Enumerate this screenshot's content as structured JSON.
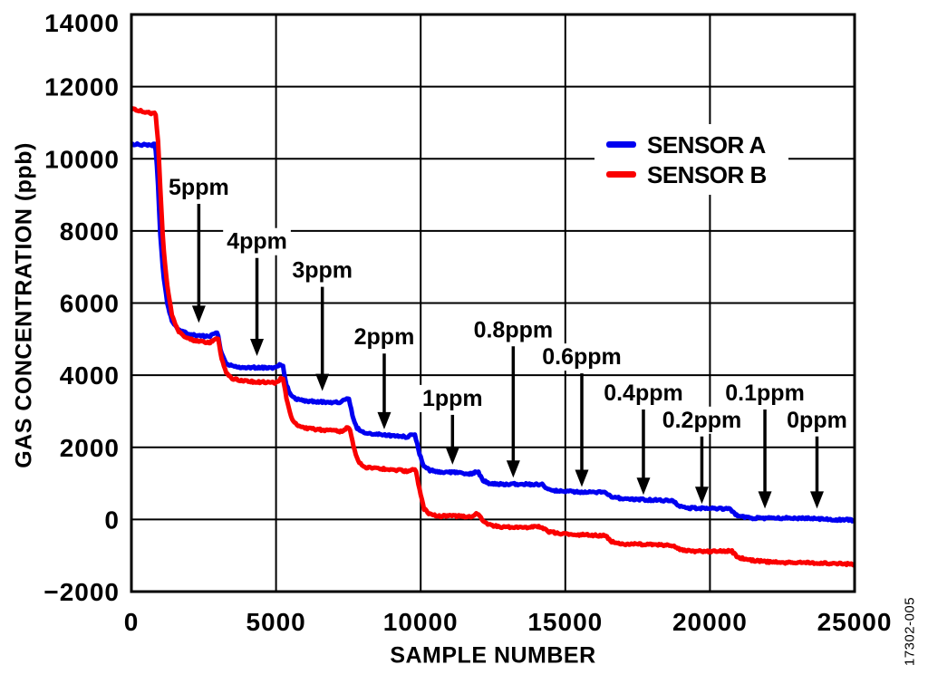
{
  "figure": {
    "watermark": "17302-005",
    "background_color": "#ffffff",
    "axis_color": "#000000"
  },
  "chart_data": {
    "type": "line",
    "title": "",
    "xlabel": "SAMPLE NUMBER",
    "ylabel": "GAS CONCENTRATION (ppb)",
    "xlim": [
      0,
      25000
    ],
    "ylim": [
      -2000,
      14000
    ],
    "x_ticks": [
      0,
      5000,
      10000,
      15000,
      20000,
      25000
    ],
    "y_ticks": [
      -2000,
      0,
      2000,
      4000,
      6000,
      8000,
      10000,
      12000,
      14000
    ],
    "grid": true,
    "legend_position": "upper-right-inside",
    "noise_ppb": 28,
    "series": [
      {
        "name": "SENSOR A",
        "color": "#0000f0",
        "breakpoints": [
          [
            0,
            10420
          ],
          [
            400,
            10400
          ],
          [
            700,
            10380
          ],
          [
            820,
            10420
          ],
          [
            900,
            9600
          ],
          [
            1000,
            7900
          ],
          [
            1100,
            6800
          ],
          [
            1250,
            5950
          ],
          [
            1400,
            5500
          ],
          [
            1600,
            5260
          ],
          [
            1900,
            5150
          ],
          [
            2300,
            5090
          ],
          [
            2700,
            5070
          ],
          [
            2870,
            5190
          ],
          [
            2980,
            5170
          ],
          [
            3100,
            4650
          ],
          [
            3250,
            4360
          ],
          [
            3450,
            4270
          ],
          [
            3800,
            4230
          ],
          [
            4500,
            4200
          ],
          [
            4950,
            4180
          ],
          [
            5120,
            4290
          ],
          [
            5230,
            4270
          ],
          [
            5350,
            3750
          ],
          [
            5500,
            3450
          ],
          [
            5700,
            3330
          ],
          [
            6100,
            3290
          ],
          [
            6900,
            3260
          ],
          [
            7250,
            3240
          ],
          [
            7420,
            3350
          ],
          [
            7520,
            3330
          ],
          [
            7650,
            2850
          ],
          [
            7800,
            2520
          ],
          [
            8000,
            2400
          ],
          [
            8400,
            2360
          ],
          [
            9200,
            2320
          ],
          [
            9550,
            2300
          ],
          [
            9700,
            2390
          ],
          [
            9800,
            2370
          ],
          [
            9950,
            1850
          ],
          [
            10100,
            1500
          ],
          [
            10300,
            1360
          ],
          [
            10700,
            1310
          ],
          [
            11400,
            1280
          ],
          [
            11750,
            1260
          ],
          [
            11900,
            1330
          ],
          [
            12000,
            1310
          ],
          [
            12150,
            1100
          ],
          [
            12350,
            1020
          ],
          [
            12700,
            990
          ],
          [
            13600,
            970
          ],
          [
            14100,
            950
          ],
          [
            14200,
            960
          ],
          [
            14400,
            840
          ],
          [
            14700,
            790
          ],
          [
            15300,
            780
          ],
          [
            16100,
            760
          ],
          [
            16400,
            750
          ],
          [
            16600,
            630
          ],
          [
            16900,
            570
          ],
          [
            17500,
            550
          ],
          [
            18400,
            540
          ],
          [
            18700,
            530
          ],
          [
            18900,
            400
          ],
          [
            19200,
            320
          ],
          [
            19700,
            300
          ],
          [
            20400,
            290
          ],
          [
            20700,
            280
          ],
          [
            20900,
            130
          ],
          [
            21300,
            60
          ],
          [
            21900,
            40
          ],
          [
            22800,
            30
          ],
          [
            23300,
            20
          ],
          [
            24200,
            10
          ],
          [
            24800,
            0
          ],
          [
            25000,
            -20
          ]
        ]
      },
      {
        "name": "SENSOR B",
        "color": "#fa0000",
        "breakpoints": [
          [
            0,
            11400
          ],
          [
            350,
            11320
          ],
          [
            700,
            11270
          ],
          [
            830,
            11320
          ],
          [
            920,
            10500
          ],
          [
            1000,
            9200
          ],
          [
            1100,
            7600
          ],
          [
            1250,
            6400
          ],
          [
            1400,
            5700
          ],
          [
            1600,
            5250
          ],
          [
            1850,
            5030
          ],
          [
            2250,
            4940
          ],
          [
            2700,
            4880
          ],
          [
            2890,
            5000
          ],
          [
            3000,
            4980
          ],
          [
            3120,
            4450
          ],
          [
            3280,
            4050
          ],
          [
            3500,
            3900
          ],
          [
            3900,
            3850
          ],
          [
            4600,
            3810
          ],
          [
            5000,
            3790
          ],
          [
            5140,
            3890
          ],
          [
            5250,
            3870
          ],
          [
            5380,
            3250
          ],
          [
            5550,
            2750
          ],
          [
            5750,
            2570
          ],
          [
            6150,
            2510
          ],
          [
            7000,
            2470
          ],
          [
            7300,
            2450
          ],
          [
            7450,
            2550
          ],
          [
            7550,
            2530
          ],
          [
            7700,
            1950
          ],
          [
            7850,
            1580
          ],
          [
            8100,
            1440
          ],
          [
            8500,
            1400
          ],
          [
            9250,
            1360
          ],
          [
            9580,
            1340
          ],
          [
            9720,
            1410
          ],
          [
            9820,
            1390
          ],
          [
            9970,
            800
          ],
          [
            10120,
            300
          ],
          [
            10350,
            140
          ],
          [
            10700,
            100
          ],
          [
            11400,
            80
          ],
          [
            11780,
            70
          ],
          [
            11920,
            140
          ],
          [
            12020,
            120
          ],
          [
            12200,
            -90
          ],
          [
            12450,
            -170
          ],
          [
            12800,
            -200
          ],
          [
            13700,
            -215
          ],
          [
            14150,
            -205
          ],
          [
            14400,
            -340
          ],
          [
            14750,
            -400
          ],
          [
            15500,
            -420
          ],
          [
            16150,
            -430
          ],
          [
            16400,
            -440
          ],
          [
            16600,
            -600
          ],
          [
            16950,
            -680
          ],
          [
            17600,
            -700
          ],
          [
            18500,
            -710
          ],
          [
            18750,
            -720
          ],
          [
            18950,
            -820
          ],
          [
            19350,
            -870
          ],
          [
            20000,
            -885
          ],
          [
            20500,
            -890
          ],
          [
            20750,
            -885
          ],
          [
            20950,
            -1060
          ],
          [
            21350,
            -1130
          ],
          [
            22000,
            -1165
          ],
          [
            22800,
            -1195
          ],
          [
            23600,
            -1215
          ],
          [
            24500,
            -1225
          ],
          [
            25000,
            -1235
          ]
        ]
      }
    ],
    "annotations": [
      {
        "label": "5ppm",
        "x": 2330,
        "from_ppb": 8750,
        "to_ppb": 5450
      },
      {
        "label": "4ppm",
        "x": 4340,
        "from_ppb": 7250,
        "to_ppb": 4530
      },
      {
        "label": "3ppm",
        "x": 6600,
        "from_ppb": 6450,
        "to_ppb": 3560
      },
      {
        "label": "2ppm",
        "x": 8740,
        "from_ppb": 4600,
        "to_ppb": 2500
      },
      {
        "label": "1ppm",
        "x": 11100,
        "from_ppb": 2900,
        "to_ppb": 1520
      },
      {
        "label": "0.8ppm",
        "x": 13200,
        "from_ppb": 4800,
        "to_ppb": 1160
      },
      {
        "label": "0.6ppm",
        "x": 15570,
        "from_ppb": 4050,
        "to_ppb": 900
      },
      {
        "label": "0.4ppm",
        "x": 17700,
        "from_ppb": 3050,
        "to_ppb": 680
      },
      {
        "label": "0.2ppm",
        "x": 19720,
        "from_ppb": 2300,
        "to_ppb": 430
      },
      {
        "label": "0.1ppm",
        "x": 21900,
        "from_ppb": 3050,
        "to_ppb": 300
      },
      {
        "label": "0ppm",
        "x": 23700,
        "from_ppb": 2300,
        "to_ppb": 300
      }
    ]
  },
  "legend": {
    "items": [
      {
        "label": "SENSOR A",
        "color": "#0000f0"
      },
      {
        "label": "SENSOR B",
        "color": "#fa0000"
      }
    ]
  }
}
